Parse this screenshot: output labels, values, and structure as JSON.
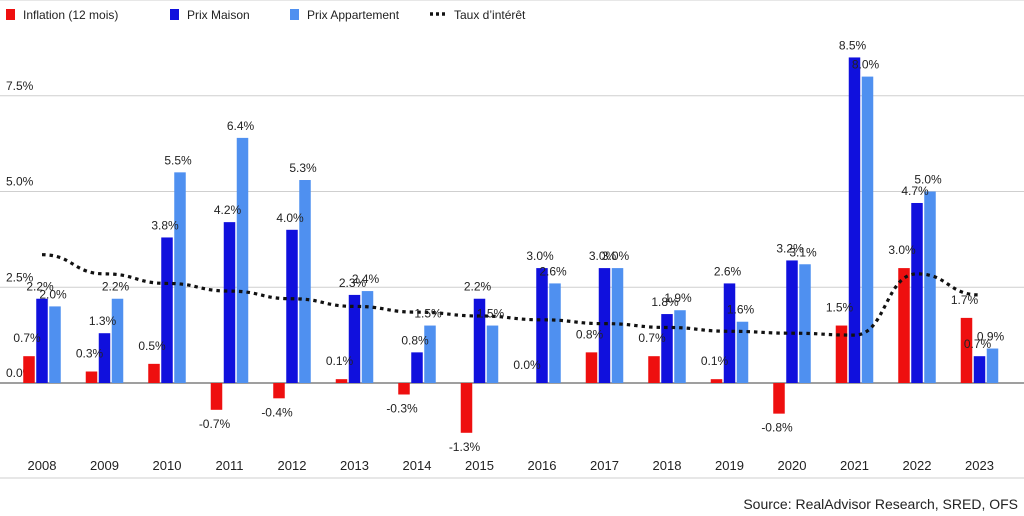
{
  "chart_data": {
    "type": "bar",
    "categories": [
      "2008",
      "2009",
      "2010",
      "2011",
      "2012",
      "2013",
      "2014",
      "2015",
      "2016",
      "2017",
      "2018",
      "2019",
      "2020",
      "2021",
      "2022",
      "2023"
    ],
    "series": [
      {
        "name": "Inflation (12 mois)",
        "kind": "bar",
        "color": "#ee0f0f",
        "values": [
          0.7,
          0.3,
          0.5,
          -0.7,
          -0.4,
          0.1,
          -0.3,
          -1.3,
          0.0,
          0.8,
          0.7,
          0.1,
          -0.8,
          1.5,
          3.0,
          1.7
        ],
        "labels": [
          "0.7%",
          "0.3%",
          "0.5%",
          "-0.7%",
          "-0.4%",
          "0.1%",
          "-0.3%",
          "-1.3%",
          "0.0%",
          "0.8%",
          "0.7%",
          "0.1%",
          "-0.8%",
          "1.5%",
          "3.0%",
          "1.7%"
        ]
      },
      {
        "name": "Prix Maison",
        "kind": "bar",
        "color": "#1010dd",
        "values": [
          2.2,
          1.3,
          3.8,
          4.2,
          4.0,
          2.3,
          0.8,
          2.2,
          3.0,
          3.0,
          1.8,
          2.6,
          3.2,
          8.5,
          4.7,
          0.7
        ],
        "labels": [
          "2.2%",
          "1.3%",
          "3.8%",
          "4.2%",
          "4.0%",
          "2.3%",
          "0.8%",
          "2.2%",
          "3.0%",
          "3.0%",
          "1.8%",
          "2.6%",
          "3.2%",
          "8.5%",
          "4.7%",
          "0.7%"
        ]
      },
      {
        "name": "Prix Appartement",
        "kind": "bar",
        "color": "#4f90f0",
        "values": [
          2.0,
          2.2,
          5.5,
          6.4,
          5.3,
          2.4,
          1.5,
          1.5,
          2.6,
          3.0,
          1.9,
          1.6,
          3.1,
          8.0,
          5.0,
          0.9
        ],
        "labels": [
          "2.0%",
          "2.2%",
          "5.5%",
          "6.4%",
          "5.3%",
          "2.4%",
          "1.5%",
          "1.5%",
          "2.6%",
          "3.0%",
          "1.9%",
          "1.6%",
          "3.1%",
          "8.0%",
          "5.0%",
          "0.9%"
        ]
      },
      {
        "name": "Taux d’intérêt",
        "kind": "dotted-line",
        "color": "#111111",
        "values": [
          3.35,
          2.85,
          2.6,
          2.4,
          2.2,
          2.0,
          1.85,
          1.75,
          1.65,
          1.55,
          1.45,
          1.35,
          1.3,
          1.25,
          2.85,
          2.3
        ]
      }
    ],
    "yticks": [
      "0.0%",
      "2.5%",
      "5.0%",
      "7.5%"
    ],
    "ytick_values": [
      0,
      2.5,
      5,
      7.5
    ],
    "ylim": [
      -1.9,
      10.1
    ],
    "grid": true,
    "legend_position": "top-left",
    "source": "Source: RealAdvisor Research, SRED, OFS"
  }
}
